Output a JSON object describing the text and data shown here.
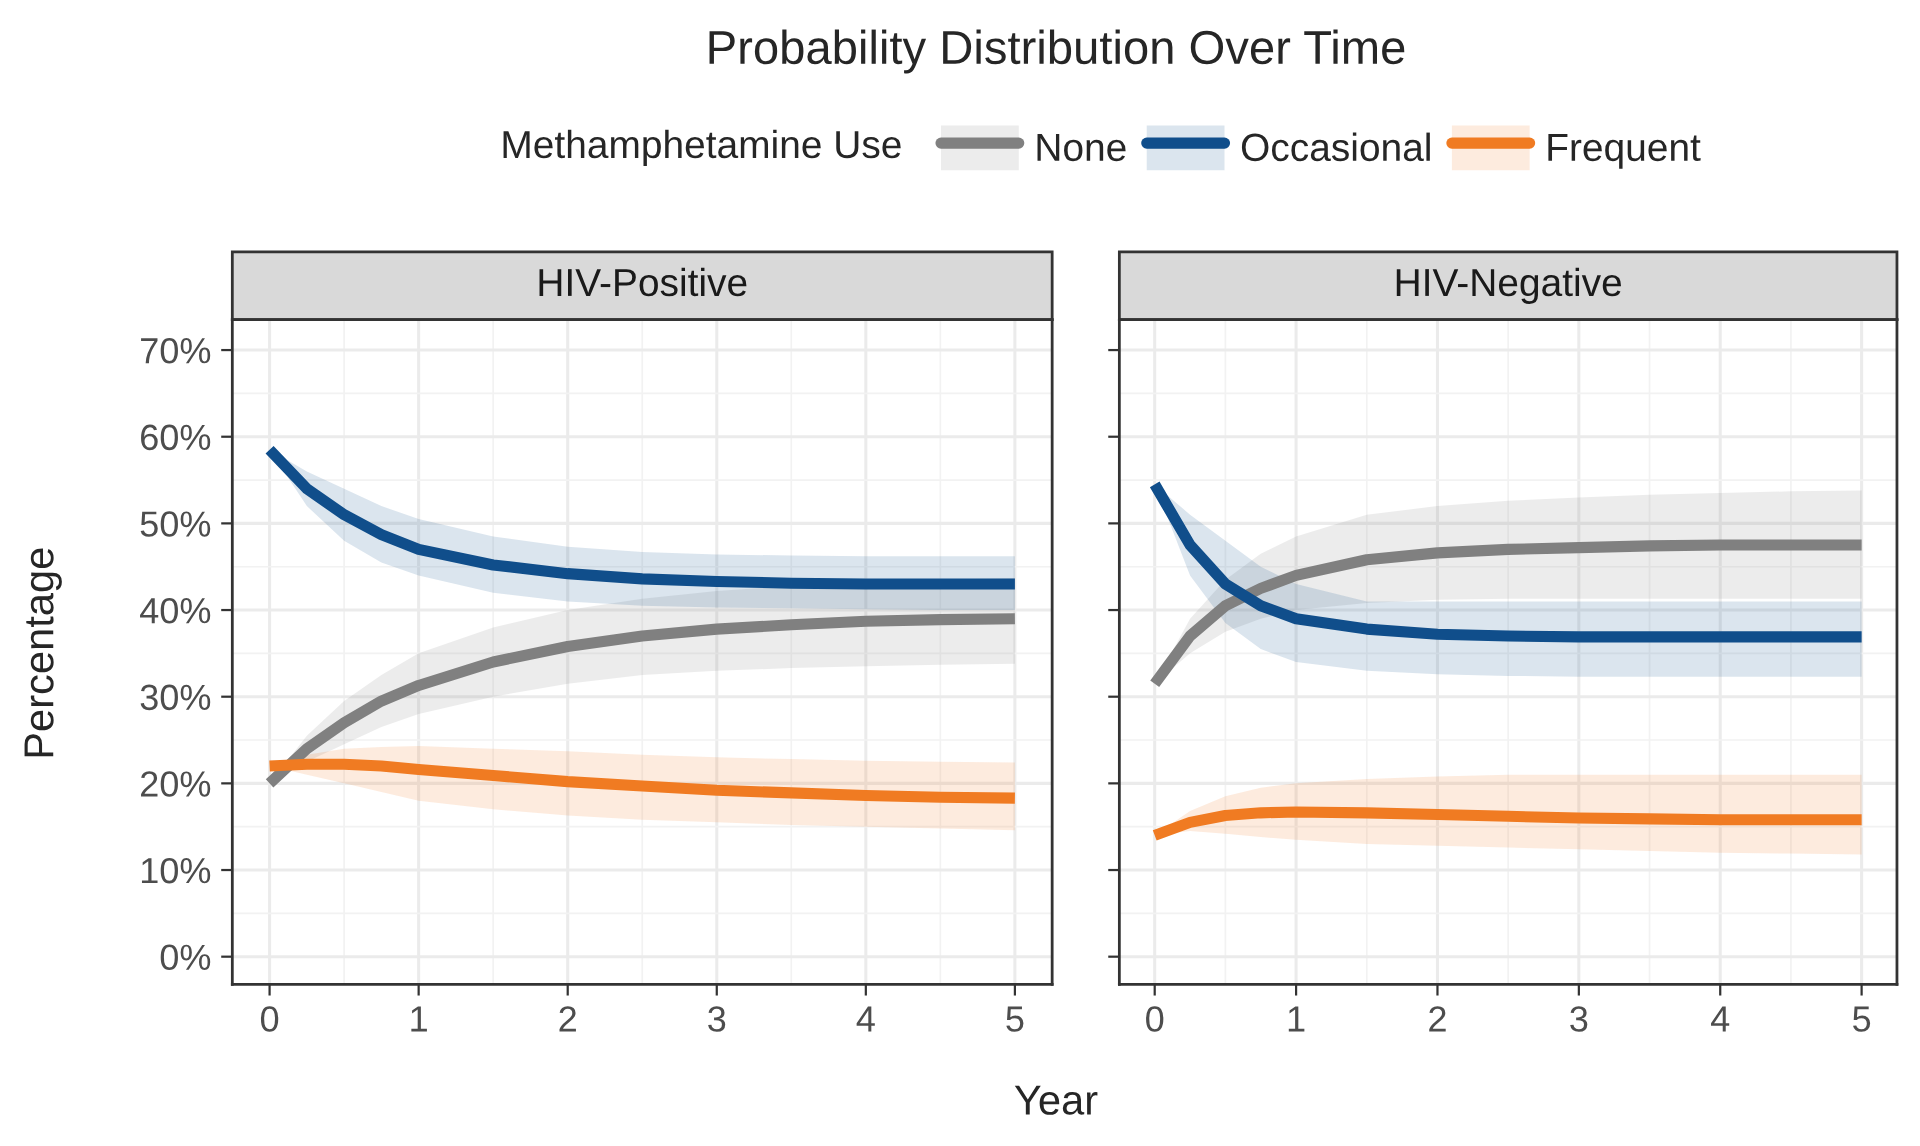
{
  "chart_data": [
    {
      "type": "line",
      "title": "Probability Distribution Over Time",
      "subtitle": "HIV-Positive",
      "xlabel": "Year",
      "ylabel": "Percentage",
      "legend_title": "Methamphetamine Use",
      "legend": "top",
      "grid": true,
      "tick_labels": "xy",
      "x": [
        0,
        0.25,
        0.5,
        0.75,
        1,
        1.5,
        2,
        2.5,
        3,
        3.5,
        4,
        4.5,
        5
      ],
      "xlim": [
        -0.25,
        5.25
      ],
      "xticks": [
        0,
        1,
        2,
        3,
        4,
        5
      ],
      "ylim": [
        -3.2,
        73.5
      ],
      "yticks": [
        {
          "value": 0,
          "label": "0%"
        },
        {
          "value": 10,
          "label": "10%"
        },
        {
          "value": 20,
          "label": "20%"
        },
        {
          "value": 30,
          "label": "30%"
        },
        {
          "value": 40,
          "label": "40%"
        },
        {
          "value": 50,
          "label": "50%"
        },
        {
          "value": 60,
          "label": "60%"
        },
        {
          "value": 70,
          "label": "70%"
        }
      ],
      "series": [
        {
          "name": "None",
          "color": "#808080",
          "values": [
            20,
            24,
            27,
            29.5,
            31.3,
            34,
            35.8,
            37,
            37.8,
            38.3,
            38.7,
            38.9,
            39
          ],
          "lower": [
            20,
            22.5,
            24.5,
            26.5,
            28,
            30,
            31.5,
            32.5,
            33,
            33.3,
            33.5,
            33.7,
            33.8
          ],
          "upper": [
            20,
            25.5,
            29.5,
            32.5,
            35,
            38,
            40,
            41.3,
            42.2,
            42.8,
            43.2,
            43.5,
            43.7
          ]
        },
        {
          "name": "Occasional",
          "color": "#104e8b",
          "values": [
            58.5,
            54,
            51,
            48.7,
            47,
            45.2,
            44.2,
            43.6,
            43.3,
            43.1,
            43,
            43,
            43
          ],
          "lower": [
            58.5,
            52,
            48,
            45.5,
            44,
            42,
            41,
            40.5,
            40.3,
            40.2,
            40.1,
            40,
            40
          ],
          "upper": [
            58.5,
            56,
            54,
            52,
            50.5,
            48.5,
            47.3,
            46.7,
            46.4,
            46.3,
            46.2,
            46.2,
            46.2
          ]
        },
        {
          "name": "Frequent",
          "color": "#f07b22",
          "values": [
            22,
            22.2,
            22.2,
            22,
            21.6,
            20.9,
            20.2,
            19.7,
            19.2,
            18.9,
            18.6,
            18.4,
            18.3
          ],
          "lower": [
            22,
            21,
            20,
            19,
            18,
            17,
            16.3,
            15.8,
            15.5,
            15.2,
            15,
            14.8,
            14.6
          ],
          "upper": [
            22,
            23.3,
            24,
            24.2,
            24.3,
            24,
            23.7,
            23.3,
            23,
            22.8,
            22.6,
            22.5,
            22.4
          ]
        }
      ]
    },
    {
      "type": "line",
      "subtitle": "HIV-Negative",
      "grid": true,
      "tick_labels": "x",
      "x": [
        0,
        0.25,
        0.5,
        0.75,
        1,
        1.5,
        2,
        2.5,
        3,
        3.5,
        4,
        4.5,
        5
      ],
      "xlim": [
        -0.25,
        5.25
      ],
      "xticks": [
        0,
        1,
        2,
        3,
        4,
        5
      ],
      "ylim": [
        -3.2,
        73.5
      ],
      "yticks": [
        {
          "value": 0,
          "label": null
        },
        {
          "value": 10,
          "label": null
        },
        {
          "value": 20,
          "label": null
        },
        {
          "value": 30,
          "label": null
        },
        {
          "value": 40,
          "label": null
        },
        {
          "value": 50,
          "label": null
        },
        {
          "value": 60,
          "label": null
        },
        {
          "value": 70,
          "label": null
        }
      ],
      "series": [
        {
          "color": "#808080",
          "values": [
            31.5,
            37,
            40.5,
            42.5,
            44,
            45.8,
            46.6,
            47,
            47.2,
            47.4,
            47.5,
            47.5,
            47.5
          ],
          "lower": [
            31.5,
            35,
            37.5,
            39,
            40,
            40.8,
            41.2,
            41.3,
            41.3,
            41.3,
            41.3,
            41.3,
            41.3
          ],
          "upper": [
            31.5,
            39,
            43.5,
            46.5,
            48.5,
            51,
            52,
            52.6,
            53,
            53.3,
            53.5,
            53.7,
            53.8
          ]
        },
        {
          "color": "#104e8b",
          "values": [
            54.5,
            47.5,
            43,
            40.5,
            39,
            37.8,
            37.2,
            37,
            36.9,
            36.9,
            36.9,
            36.9,
            36.9
          ],
          "lower": [
            54.5,
            44,
            38.5,
            35.5,
            34,
            33,
            32.6,
            32.4,
            32.3,
            32.3,
            32.3,
            32.3,
            32.3
          ],
          "upper": [
            54.5,
            51,
            48,
            45,
            43,
            41,
            41,
            41,
            41,
            41,
            41,
            41,
            41
          ]
        },
        {
          "color": "#f07b22",
          "values": [
            14,
            15.5,
            16.3,
            16.6,
            16.7,
            16.6,
            16.4,
            16.2,
            16,
            15.9,
            15.8,
            15.8,
            15.8
          ],
          "lower": [
            14,
            14.5,
            14.2,
            13.8,
            13.5,
            13,
            12.8,
            12.6,
            12.4,
            12.2,
            12,
            11.9,
            11.8
          ],
          "upper": [
            14,
            16.8,
            18.5,
            19.5,
            20,
            20.5,
            20.8,
            21,
            21,
            21,
            21,
            21,
            21
          ]
        }
      ]
    }
  ]
}
